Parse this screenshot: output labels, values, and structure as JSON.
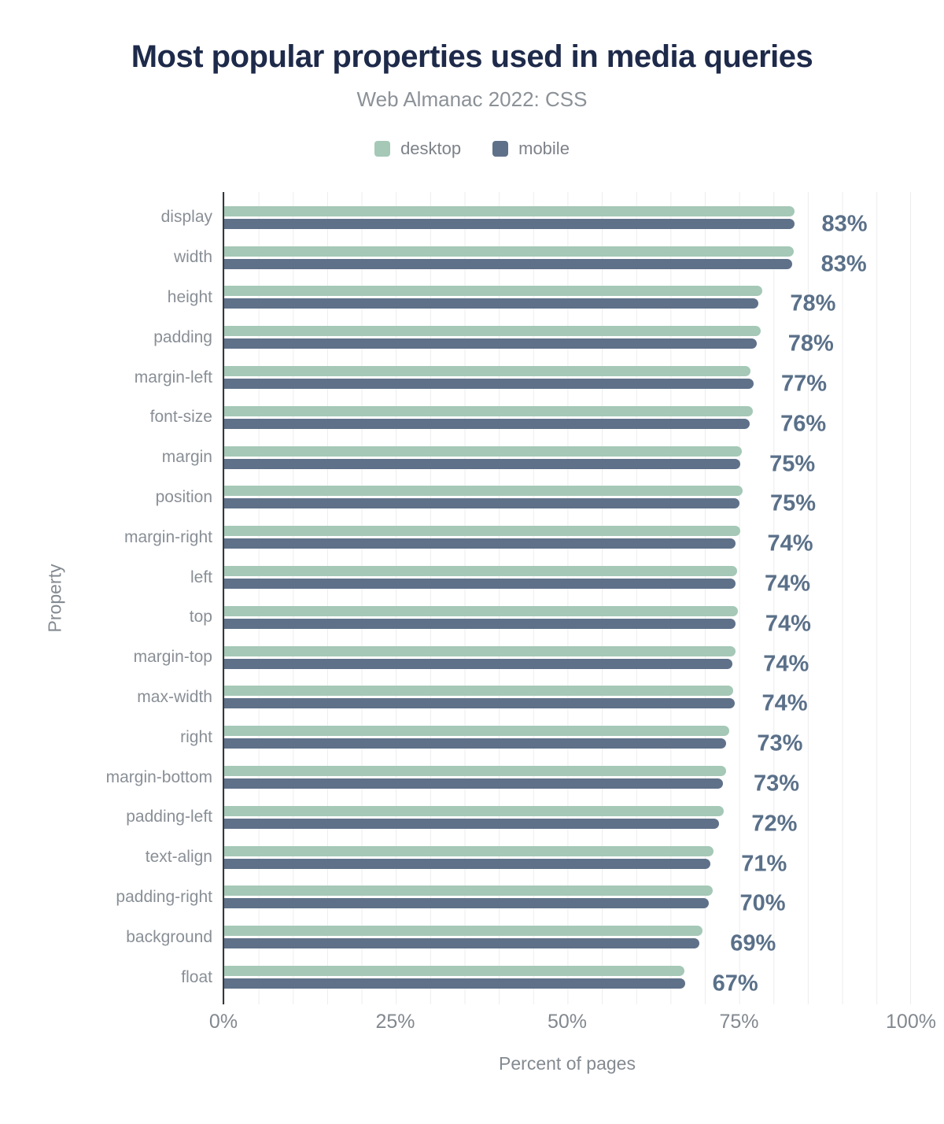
{
  "header": {
    "title": "Most popular properties used in media queries",
    "subtitle": "Web Almanac 2022: CSS"
  },
  "legend": [
    {
      "label": "desktop",
      "color": "#a5c8b7"
    },
    {
      "label": "mobile",
      "color": "#5f7189"
    }
  ],
  "colors": {
    "title": "#1e2a4a",
    "desktop_bar": "#a5c8b7",
    "mobile_bar": "#5f7189",
    "value_label": "#5a7089",
    "axis_line": "#33383d",
    "gridline": "#ededed",
    "secondary_text": "#898f96"
  },
  "axes": {
    "x_ticks": [
      "0%",
      "25%",
      "50%",
      "75%",
      "100%"
    ],
    "xlabel": "Percent of pages",
    "ylabel": "Property"
  },
  "chart_data": {
    "type": "bar",
    "orientation": "horizontal",
    "title": "Most popular properties used in media queries",
    "subtitle": "Web Almanac 2022: CSS",
    "xlabel": "Percent of pages",
    "ylabel": "Property",
    "xlim": [
      0,
      100
    ],
    "x_tick_values": [
      0,
      25,
      50,
      75,
      100
    ],
    "grid": "vertical minor gridlines every 5%",
    "legend_position": "top",
    "categories": [
      "display",
      "width",
      "height",
      "padding",
      "margin-left",
      "font-size",
      "margin",
      "position",
      "margin-right",
      "left",
      "top",
      "margin-top",
      "max-width",
      "right",
      "margin-bottom",
      "padding-left",
      "text-align",
      "padding-right",
      "background",
      "float"
    ],
    "series": [
      {
        "name": "desktop",
        "color": "#a5c8b7",
        "values": [
          82.9,
          82.8,
          78.3,
          78.0,
          76.6,
          76.9,
          75.3,
          75.4,
          75.0,
          74.6,
          74.7,
          74.4,
          74.0,
          73.5,
          73.0,
          72.7,
          71.2,
          71.0,
          69.6,
          66.9
        ]
      },
      {
        "name": "mobile",
        "color": "#5f7189",
        "values": [
          82.9,
          82.6,
          77.7,
          77.5,
          77.0,
          76.4,
          75.1,
          74.9,
          74.4,
          74.4,
          74.4,
          73.9,
          74.2,
          73.0,
          72.5,
          72.0,
          70.7,
          70.5,
          69.1,
          67.0
        ]
      }
    ],
    "value_labels": [
      "83%",
      "83%",
      "78%",
      "78%",
      "77%",
      "76%",
      "75%",
      "75%",
      "74%",
      "74%",
      "74%",
      "74%",
      "74%",
      "73%",
      "73%",
      "72%",
      "71%",
      "70%",
      "69%",
      "67%"
    ]
  }
}
